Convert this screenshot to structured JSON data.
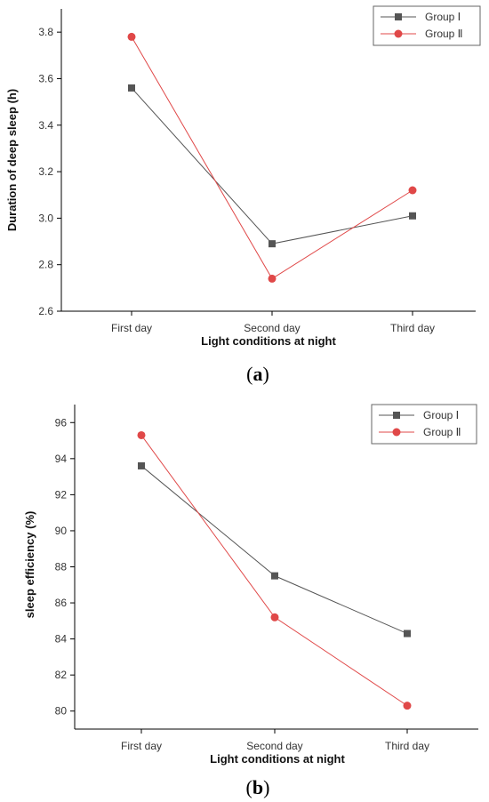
{
  "chart_data": [
    {
      "type": "line",
      "caption": {
        "open": "(",
        "letter": "a",
        "close": ")"
      },
      "categories": [
        "First day",
        "Second day",
        "Third day"
      ],
      "series": [
        {
          "name": "Group Ⅰ",
          "values": [
            3.56,
            2.89,
            3.01
          ],
          "color": "#555555",
          "marker": "square"
        },
        {
          "name": "Group Ⅱ",
          "values": [
            3.78,
            2.74,
            3.12
          ],
          "color": "#e04848",
          "marker": "circle"
        }
      ],
      "xlabel": "Light conditions at night",
      "ylabel": "Duration of deep sleep  (h)",
      "ylim": [
        2.6,
        3.9
      ],
      "yticks": [
        "2.6",
        "2.8",
        "3.0",
        "3.2",
        "3.4",
        "3.6",
        "3.8"
      ],
      "legend": "top-right",
      "grid": false
    },
    {
      "type": "line",
      "caption": {
        "open": "(",
        "letter": "b",
        "close": ")"
      },
      "categories": [
        "First day",
        "Second day",
        "Third day"
      ],
      "series": [
        {
          "name": "Group Ⅰ",
          "values": [
            93.6,
            87.5,
            84.3
          ],
          "color": "#555555",
          "marker": "square"
        },
        {
          "name": "Group Ⅱ",
          "values": [
            95.3,
            85.2,
            80.3
          ],
          "color": "#e04848",
          "marker": "circle"
        }
      ],
      "xlabel": "Light conditions at night",
      "ylabel": "sleep efficiency  (%)",
      "ylim": [
        79,
        97
      ],
      "yticks": [
        "80",
        "82",
        "84",
        "86",
        "88",
        "90",
        "92",
        "94",
        "96"
      ],
      "legend": "top-right",
      "grid": false
    }
  ]
}
